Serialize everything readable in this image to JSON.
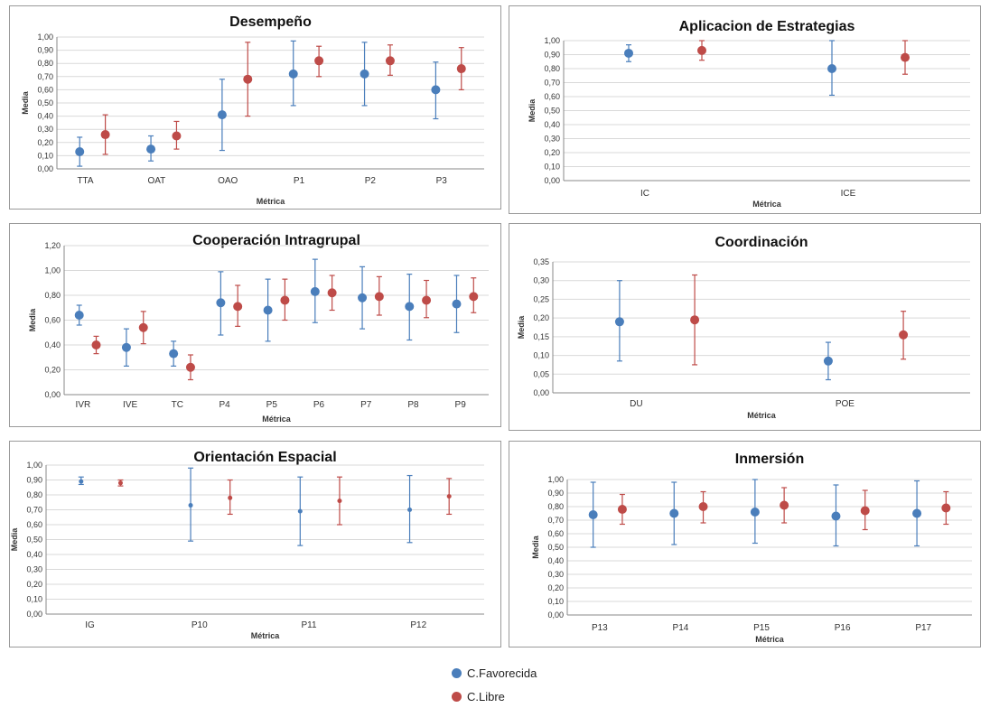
{
  "colors": {
    "favorecida": "#4a7ebb",
    "libre": "#be4b48",
    "grid": "#d9d9d9",
    "axis": "#888888"
  },
  "legend": {
    "series_a": "C.Favorecida",
    "series_b": "C.Libre"
  },
  "chart_data": [
    {
      "type": "scatter",
      "title": "Desempeño",
      "xlabel": "Métrica",
      "ylabel": "Media",
      "ylim": [
        0,
        1
      ],
      "yticks": [
        "0,00",
        "0,10",
        "0,20",
        "0,30",
        "0,40",
        "0,50",
        "0,60",
        "0,70",
        "0,80",
        "0,90",
        "1,00"
      ],
      "categories": [
        "TTA",
        "OAT",
        "OAO",
        "P1",
        "P2",
        "P3"
      ],
      "series": [
        {
          "name": "C.Favorecida",
          "values": [
            0.13,
            0.15,
            0.41,
            0.72,
            0.72,
            0.6
          ],
          "low": [
            0.02,
            0.06,
            0.14,
            0.48,
            0.48,
            0.38
          ],
          "high": [
            0.24,
            0.25,
            0.68,
            0.97,
            0.96,
            0.81
          ]
        },
        {
          "name": "C.Libre",
          "values": [
            0.26,
            0.25,
            0.68,
            0.82,
            0.82,
            0.76
          ],
          "low": [
            0.11,
            0.15,
            0.4,
            0.7,
            0.71,
            0.6
          ],
          "high": [
            0.41,
            0.36,
            0.96,
            0.93,
            0.94,
            0.92
          ]
        }
      ]
    },
    {
      "type": "scatter",
      "title": "Aplicacion de Estrategias",
      "xlabel": "Métrica",
      "ylabel": "Media",
      "ylim": [
        0,
        1
      ],
      "yticks": [
        "0,00",
        "0,10",
        "0,20",
        "0,30",
        "0,40",
        "0,50",
        "0,60",
        "0,70",
        "0,80",
        "0,90",
        "1,00"
      ],
      "categories": [
        "IC",
        "ICE"
      ],
      "series": [
        {
          "name": "C.Favorecida",
          "values": [
            0.91,
            0.8
          ],
          "low": [
            0.85,
            0.61
          ],
          "high": [
            0.97,
            1.0
          ]
        },
        {
          "name": "C.Libre",
          "values": [
            0.93,
            0.88
          ],
          "low": [
            0.86,
            0.76
          ],
          "high": [
            1.0,
            1.0
          ]
        }
      ]
    },
    {
      "type": "scatter",
      "title": "Cooperación Intragrupal",
      "xlabel": "Métrica",
      "ylabel": "Media",
      "ylim": [
        0,
        1.2
      ],
      "yticks": [
        "0,00",
        "0,20",
        "0,40",
        "0,60",
        "0,80",
        "1,00",
        "1,20"
      ],
      "categories": [
        "IVR",
        "IVE",
        "TC",
        "P4",
        "P5",
        "P6",
        "P7",
        "P8",
        "P9"
      ],
      "series": [
        {
          "name": "C.Favorecida",
          "values": [
            0.64,
            0.38,
            0.33,
            0.74,
            0.68,
            0.83,
            0.78,
            0.71,
            0.73
          ],
          "low": [
            0.56,
            0.23,
            0.23,
            0.48,
            0.43,
            0.58,
            0.53,
            0.44,
            0.5
          ],
          "high": [
            0.72,
            0.53,
            0.43,
            0.99,
            0.93,
            1.09,
            1.03,
            0.97,
            0.96
          ]
        },
        {
          "name": "C.Libre",
          "values": [
            0.4,
            0.54,
            0.22,
            0.71,
            0.76,
            0.82,
            0.79,
            0.76,
            0.79
          ],
          "low": [
            0.33,
            0.41,
            0.12,
            0.55,
            0.6,
            0.68,
            0.64,
            0.62,
            0.66
          ],
          "high": [
            0.47,
            0.67,
            0.32,
            0.88,
            0.93,
            0.96,
            0.95,
            0.92,
            0.94
          ]
        }
      ]
    },
    {
      "type": "scatter",
      "title": "Coordinación",
      "xlabel": "Métrica",
      "ylabel": "Media",
      "ylim": [
        0,
        0.35
      ],
      "yticks": [
        "0,00",
        "0,05",
        "0,10",
        "0,15",
        "0,20",
        "0,25",
        "0,30",
        "0,35"
      ],
      "categories": [
        "DU",
        "POE"
      ],
      "series": [
        {
          "name": "C.Favorecida",
          "values": [
            0.19,
            0.085
          ],
          "low": [
            0.085,
            0.035
          ],
          "high": [
            0.3,
            0.135
          ]
        },
        {
          "name": "C.Libre",
          "values": [
            0.195,
            0.155
          ],
          "low": [
            0.075,
            0.09
          ],
          "high": [
            0.315,
            0.218
          ]
        }
      ]
    },
    {
      "type": "scatter",
      "title": "Orientación Espacial",
      "xlabel": "Métrica",
      "ylabel": "Media",
      "ylim": [
        0,
        1
      ],
      "yticks": [
        "0,00",
        "0,10",
        "0,20",
        "0,30",
        "0,40",
        "0,50",
        "0,60",
        "0,70",
        "0,80",
        "0,90",
        "1,00"
      ],
      "categories": [
        "IG",
        "P10",
        "P11",
        "P12"
      ],
      "series": [
        {
          "name": "C.Favorecida",
          "values": [
            0.89,
            0.73,
            0.69,
            0.7
          ],
          "low": [
            0.87,
            0.49,
            0.46,
            0.48
          ],
          "high": [
            0.92,
            0.98,
            0.92,
            0.93
          ]
        },
        {
          "name": "C.Libre",
          "values": [
            0.88,
            0.78,
            0.76,
            0.79
          ],
          "low": [
            0.86,
            0.67,
            0.6,
            0.67
          ],
          "high": [
            0.9,
            0.9,
            0.92,
            0.91
          ]
        }
      ]
    },
    {
      "type": "scatter",
      "title": "Inmersión",
      "xlabel": "Métrica",
      "ylabel": "Media",
      "ylim": [
        0,
        1
      ],
      "yticks": [
        "0,00",
        "0,10",
        "0,20",
        "0,30",
        "0,40",
        "0,50",
        "0,60",
        "0,70",
        "0,80",
        "0,90",
        "1,00"
      ],
      "categories": [
        "P13",
        "P14",
        "P15",
        "P16",
        "P17"
      ],
      "series": [
        {
          "name": "C.Favorecida",
          "values": [
            0.74,
            0.75,
            0.76,
            0.73,
            0.75
          ],
          "low": [
            0.5,
            0.52,
            0.53,
            0.51,
            0.51
          ],
          "high": [
            0.98,
            0.98,
            1.0,
            0.96,
            0.99
          ]
        },
        {
          "name": "C.Libre",
          "values": [
            0.78,
            0.8,
            0.81,
            0.77,
            0.79
          ],
          "low": [
            0.67,
            0.68,
            0.68,
            0.63,
            0.67
          ],
          "high": [
            0.89,
            0.91,
            0.94,
            0.92,
            0.91
          ]
        }
      ]
    }
  ]
}
